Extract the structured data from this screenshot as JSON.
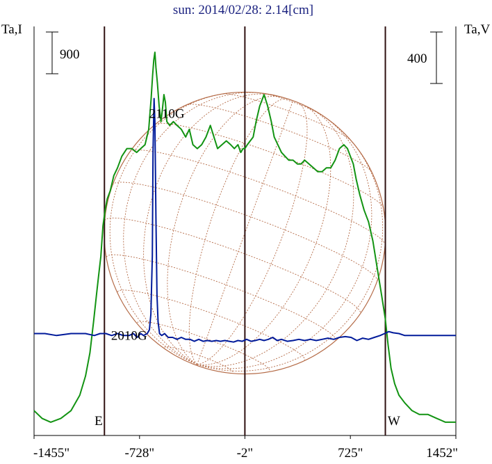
{
  "chart_data": {
    "type": "line",
    "title": "sun: 2014/02/28: 2.14[cm]",
    "y_left_label": "Ta,I",
    "y_right_label": "Ta,V",
    "scale_bar_left": "900",
    "scale_bar_right": "400",
    "x_ticks": [
      {
        "value": -1455,
        "label": "-1455\""
      },
      {
        "value": -728,
        "label": "-728\""
      },
      {
        "value": -2,
        "label": "-2\""
      },
      {
        "value": 725,
        "label": "725\""
      },
      {
        "value": 1452,
        "label": "1452\""
      }
    ],
    "xlim": [
      -1455,
      1452
    ],
    "vertical_lines": [
      -970,
      -2,
      966
    ],
    "limb_labels": [
      {
        "text": "E",
        "x": -1010
      },
      {
        "text": "W",
        "x": 1025
      }
    ],
    "annotations": [
      {
        "text": "2110G",
        "x": -540,
        "y": 0.82
      },
      {
        "text": "2010G",
        "x": -800,
        "y": 0.245
      }
    ],
    "disk": {
      "center_x": -2,
      "radius_arcsec": 970
    },
    "colors": {
      "intensity": "#129312",
      "polarization": "#001a9a",
      "disk": "#b46a46",
      "axis": "#2e1010",
      "title": "#1b2280"
    },
    "series": [
      {
        "name": "I",
        "color": "#129312",
        "x": [
          -1455,
          -1400,
          -1340,
          -1270,
          -1200,
          -1140,
          -1100,
          -1070,
          -1045,
          -1025,
          -1010,
          -995,
          -980,
          -965,
          -950,
          -930,
          -905,
          -880,
          -850,
          -815,
          -780,
          -748,
          -720,
          -690,
          -665,
          -648,
          -638,
          -630,
          -622,
          -615,
          -605,
          -593,
          -580,
          -568,
          -560,
          -550,
          -540,
          -520,
          -495,
          -470,
          -440,
          -410,
          -385,
          -360,
          -330,
          -300,
          -270,
          -240,
          -215,
          -190,
          -160,
          -130,
          -100,
          -75,
          -50,
          -30,
          -15,
          -2,
          15,
          35,
          55,
          75,
          100,
          130,
          155,
          180,
          200,
          225,
          250,
          275,
          300,
          330,
          360,
          385,
          410,
          440,
          470,
          500,
          530,
          560,
          590,
          620,
          650,
          680,
          705,
          725,
          745,
          765,
          790,
          820,
          850,
          880,
          910,
          940,
          965,
          985,
          1005,
          1030,
          1060,
          1100,
          1150,
          1200,
          1260,
          1320,
          1380,
          1452
        ],
        "y": [
          0.05,
          0.03,
          0.02,
          0.03,
          0.05,
          0.09,
          0.14,
          0.2,
          0.28,
          0.35,
          0.4,
          0.45,
          0.53,
          0.57,
          0.6,
          0.62,
          0.66,
          0.68,
          0.71,
          0.73,
          0.73,
          0.72,
          0.73,
          0.74,
          0.78,
          0.86,
          0.92,
          0.96,
          0.98,
          0.94,
          0.9,
          0.84,
          0.8,
          0.84,
          0.87,
          0.85,
          0.8,
          0.79,
          0.8,
          0.79,
          0.78,
          0.76,
          0.78,
          0.74,
          0.73,
          0.74,
          0.76,
          0.79,
          0.76,
          0.73,
          0.74,
          0.75,
          0.74,
          0.73,
          0.74,
          0.72,
          0.73,
          0.73,
          0.74,
          0.75,
          0.76,
          0.8,
          0.84,
          0.87,
          0.84,
          0.8,
          0.76,
          0.74,
          0.72,
          0.71,
          0.7,
          0.7,
          0.69,
          0.69,
          0.7,
          0.69,
          0.68,
          0.67,
          0.67,
          0.68,
          0.68,
          0.7,
          0.73,
          0.74,
          0.73,
          0.71,
          0.69,
          0.65,
          0.61,
          0.57,
          0.54,
          0.49,
          0.42,
          0.35,
          0.29,
          0.22,
          0.16,
          0.12,
          0.09,
          0.07,
          0.05,
          0.04,
          0.04,
          0.03,
          0.02,
          0.02
        ]
      },
      {
        "name": "V",
        "color": "#001a9a",
        "x": [
          -1455,
          -1380,
          -1300,
          -1200,
          -1100,
          -1040,
          -1000,
          -960,
          -920,
          -880,
          -840,
          -800,
          -770,
          -745,
          -720,
          -700,
          -675,
          -660,
          -650,
          -640,
          -635,
          -628,
          -622,
          -615,
          -608,
          -600,
          -590,
          -575,
          -555,
          -530,
          -500,
          -470,
          -440,
          -410,
          -380,
          -350,
          -320,
          -290,
          -260,
          -230,
          -200,
          -170,
          -140,
          -110,
          -80,
          -50,
          -20,
          10,
          40,
          70,
          100,
          130,
          160,
          190,
          220,
          250,
          290,
          330,
          370,
          410,
          450,
          490,
          530,
          570,
          610,
          650,
          690,
          730,
          770,
          810,
          850,
          890,
          930,
          960,
          990,
          1020,
          1060,
          1100,
          1160,
          1230,
          1300,
          1380,
          1452
        ],
        "y": [
          0.25,
          0.25,
          0.245,
          0.25,
          0.25,
          0.245,
          0.25,
          0.25,
          0.245,
          0.25,
          0.245,
          0.245,
          0.25,
          0.24,
          0.25,
          0.245,
          0.25,
          0.26,
          0.3,
          0.45,
          0.72,
          0.86,
          0.8,
          0.55,
          0.35,
          0.28,
          0.25,
          0.245,
          0.25,
          0.24,
          0.24,
          0.235,
          0.24,
          0.235,
          0.235,
          0.23,
          0.235,
          0.23,
          0.232,
          0.23,
          0.232,
          0.23,
          0.232,
          0.23,
          0.228,
          0.232,
          0.23,
          0.235,
          0.23,
          0.232,
          0.235,
          0.232,
          0.235,
          0.24,
          0.232,
          0.235,
          0.23,
          0.232,
          0.235,
          0.232,
          0.235,
          0.232,
          0.235,
          0.238,
          0.235,
          0.24,
          0.242,
          0.24,
          0.232,
          0.238,
          0.235,
          0.24,
          0.245,
          0.25,
          0.255,
          0.252,
          0.25,
          0.245,
          0.245,
          0.245,
          0.245,
          0.245,
          0.245
        ]
      }
    ]
  }
}
